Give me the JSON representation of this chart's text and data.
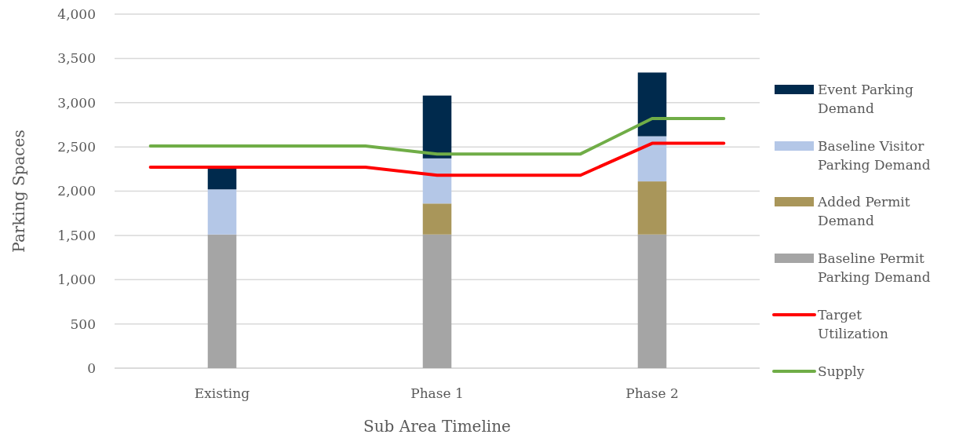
{
  "chart_data": {
    "type": "bar",
    "stacked": true,
    "xlabel": "Sub Area Timeline",
    "ylabel": "Parking Spaces",
    "categories": [
      null,
      "Existing",
      null,
      null,
      "Phase 1",
      null,
      null,
      "Phase 2",
      null
    ],
    "ylim": [
      0,
      4000
    ],
    "yticks": [
      {
        "value": 0,
        "label": "0"
      },
      {
        "value": 500,
        "label": "500"
      },
      {
        "value": 1000,
        "label": "1,000"
      },
      {
        "value": 1500,
        "label": "1,500"
      },
      {
        "value": 2000,
        "label": "2,000"
      },
      {
        "value": 2500,
        "label": "2,500"
      },
      {
        "value": 3000,
        "label": "3,000"
      },
      {
        "value": 3500,
        "label": "3,500"
      },
      {
        "value": 4000,
        "label": "4,000"
      }
    ],
    "grid": "y",
    "legend": "right",
    "series": [
      {
        "name": "Baseline Permit Parking Demand",
        "color": "#a5a5a5",
        "values": [
          null,
          1510,
          null,
          null,
          1510,
          null,
          null,
          1510,
          null
        ]
      },
      {
        "name": "Added Permit Demand",
        "color": "#a9965a",
        "values": [
          null,
          0,
          null,
          null,
          350,
          null,
          null,
          600,
          null
        ]
      },
      {
        "name": "Baseline Visitor Parking Demand",
        "color": "#b4c7e7",
        "values": [
          null,
          510,
          null,
          null,
          510,
          null,
          null,
          510,
          null
        ]
      },
      {
        "name": "Event Parking Demand",
        "color": "#002a4d",
        "values": [
          null,
          240,
          null,
          null,
          710,
          null,
          null,
          720,
          null
        ]
      },
      {
        "name": "Target Utilization",
        "type": "line",
        "color": "#ff0000",
        "values": [
          2270,
          2270,
          2270,
          2270,
          2180,
          2180,
          2180,
          2540,
          2540
        ]
      },
      {
        "name": "Supply",
        "type": "line",
        "color": "#70ad47",
        "values": [
          2510,
          2510,
          2510,
          2510,
          2420,
          2420,
          2420,
          2820,
          2820
        ]
      }
    ]
  }
}
